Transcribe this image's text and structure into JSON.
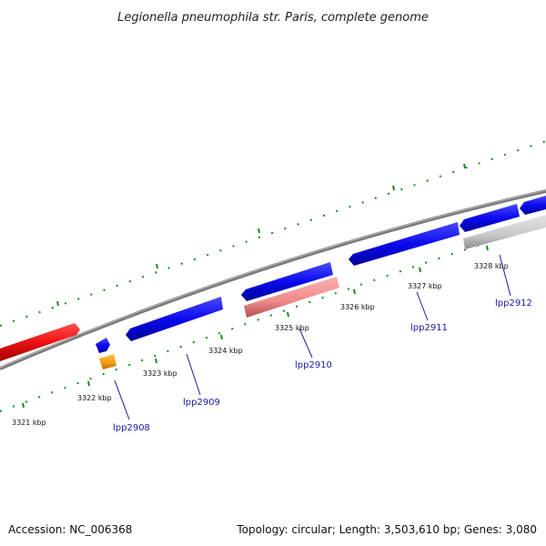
{
  "title": "Legionella pneumophila str. Paris, complete genome",
  "footer": {
    "accession": "Accession: NC_006368",
    "summary": "Topology: circular; Length: 3,503,610 bp; Genes: 3,080"
  },
  "colors": {
    "backbone": "#8a8a8a",
    "tick": "#1e8a1e",
    "gene_blue": "#0a0aee",
    "gene_red": "#ee1111",
    "gene_pink": "#f08a8a",
    "gene_grey": "#c8c8c8",
    "gene_orange": "#f59a10",
    "label_blue": "#1a1aa8"
  },
  "scale_labels": [
    "3321 kbp",
    "3322 kbp",
    "3323 kbp",
    "3324 kbp",
    "3325 kbp",
    "3326 kbp",
    "3327 kbp",
    "3328 kbp"
  ],
  "gene_labels": [
    "lpp2908",
    "lpp2909",
    "lpp2910",
    "lpp2911",
    "lpp2912"
  ]
}
